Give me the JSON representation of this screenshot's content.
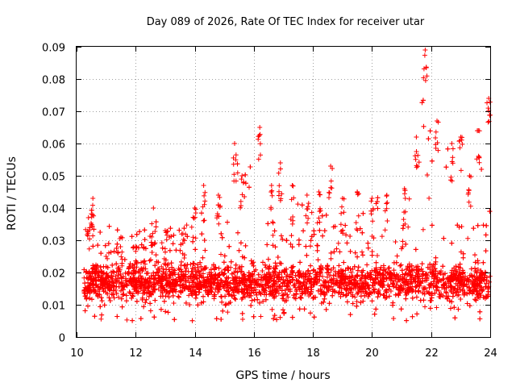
{
  "chart_data": {
    "type": "scatter",
    "title": "Day 089 of 2026, Rate Of TEC Index for receiver utar",
    "xlabel": "GPS time / hours",
    "ylabel": "ROTI / TECUs",
    "xlim": [
      10,
      24
    ],
    "ylim": [
      0,
      0.09
    ],
    "x_ticks": [
      10,
      12,
      14,
      16,
      18,
      20,
      22,
      24
    ],
    "x_tick_labels": [
      "10",
      "12",
      "14",
      "16",
      "18",
      "20",
      "22",
      "24"
    ],
    "y_ticks": [
      0,
      0.01,
      0.02,
      0.03,
      0.04,
      0.05,
      0.06,
      0.07,
      0.08,
      0.09
    ],
    "y_tick_labels": [
      "0",
      "0.01",
      "0.02",
      "0.03",
      "0.04",
      "0.05",
      "0.06",
      "0.07",
      "0.08",
      "0.09"
    ],
    "grid": true,
    "marker": "+",
    "color": "#ff0000",
    "x_start": 10.25,
    "x_end": 24.0,
    "baseline_range": [
      0.005,
      0.035
    ],
    "upper_envelope": [
      {
        "x": 10.4,
        "y": 0.037
      },
      {
        "x": 10.55,
        "y": 0.043
      },
      {
        "x": 11.0,
        "y": 0.025
      },
      {
        "x": 11.5,
        "y": 0.031
      },
      {
        "x": 12.0,
        "y": 0.028
      },
      {
        "x": 12.6,
        "y": 0.04
      },
      {
        "x": 13.0,
        "y": 0.033
      },
      {
        "x": 13.6,
        "y": 0.032
      },
      {
        "x": 14.0,
        "y": 0.04
      },
      {
        "x": 14.3,
        "y": 0.047
      },
      {
        "x": 14.8,
        "y": 0.044
      },
      {
        "x": 15.35,
        "y": 0.06
      },
      {
        "x": 15.6,
        "y": 0.05
      },
      {
        "x": 16.2,
        "y": 0.065
      },
      {
        "x": 16.6,
        "y": 0.047
      },
      {
        "x": 16.9,
        "y": 0.054
      },
      {
        "x": 17.3,
        "y": 0.047
      },
      {
        "x": 17.8,
        "y": 0.044
      },
      {
        "x": 18.2,
        "y": 0.045
      },
      {
        "x": 18.6,
        "y": 0.053
      },
      {
        "x": 19.0,
        "y": 0.043
      },
      {
        "x": 19.5,
        "y": 0.045
      },
      {
        "x": 20.0,
        "y": 0.043
      },
      {
        "x": 20.5,
        "y": 0.044
      },
      {
        "x": 21.1,
        "y": 0.046
      },
      {
        "x": 21.5,
        "y": 0.062
      },
      {
        "x": 21.8,
        "y": 0.089
      },
      {
        "x": 22.2,
        "y": 0.067
      },
      {
        "x": 22.7,
        "y": 0.06
      },
      {
        "x": 23.0,
        "y": 0.062
      },
      {
        "x": 23.3,
        "y": 0.05
      },
      {
        "x": 23.6,
        "y": 0.064
      },
      {
        "x": 23.95,
        "y": 0.074
      }
    ]
  }
}
